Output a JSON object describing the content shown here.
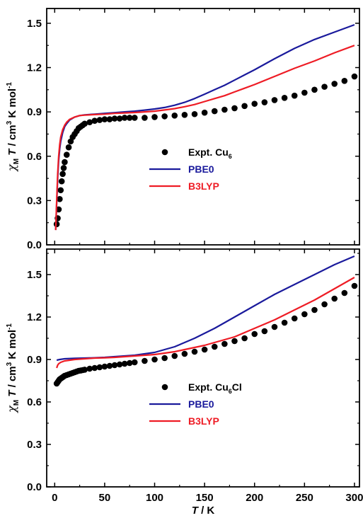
{
  "chart_data": [
    {
      "type": "line",
      "ylabel_parts": {
        "chi": "χ",
        "M": "M",
        "T": "T",
        "rest": " / cm",
        "cube": "3",
        "tail": " K mol",
        "inv": "-1"
      },
      "ylim": [
        0,
        1.6
      ],
      "xlim": [
        -8,
        305
      ],
      "yticks": [
        "0.0",
        "0.3",
        "0.6",
        "0.9",
        "1.2",
        "1.5"
      ],
      "ytick_values": [
        0,
        0.3,
        0.6,
        0.9,
        1.2,
        1.5
      ],
      "legend": [
        {
          "label": "Expt. Cu",
          "sub": "6",
          "marker": "dot",
          "color": "#000000"
        },
        {
          "label": "PBE0",
          "sub": "",
          "marker": "line",
          "color": "#1a1a9c"
        },
        {
          "label": "B3LYP",
          "sub": "",
          "marker": "line",
          "color": "#ee1c25"
        }
      ],
      "series": [
        {
          "name": "Expt. Cu6",
          "style": "scatter",
          "color": "#000000",
          "x": [
            2,
            3,
            4,
            5,
            6,
            7,
            8,
            9,
            10,
            12,
            14,
            16,
            18,
            20,
            22,
            24,
            26,
            28,
            30,
            35,
            40,
            45,
            50,
            55,
            60,
            65,
            70,
            75,
            80,
            90,
            100,
            110,
            120,
            130,
            140,
            150,
            160,
            170,
            180,
            190,
            200,
            210,
            220,
            230,
            240,
            250,
            260,
            270,
            280,
            290,
            300
          ],
          "y": [
            0.14,
            0.18,
            0.24,
            0.31,
            0.37,
            0.43,
            0.48,
            0.52,
            0.56,
            0.61,
            0.66,
            0.7,
            0.73,
            0.75,
            0.77,
            0.79,
            0.8,
            0.81,
            0.82,
            0.83,
            0.84,
            0.845,
            0.85,
            0.85,
            0.855,
            0.855,
            0.86,
            0.86,
            0.86,
            0.86,
            0.865,
            0.87,
            0.875,
            0.88,
            0.885,
            0.895,
            0.905,
            0.915,
            0.925,
            0.94,
            0.955,
            0.965,
            0.98,
            0.995,
            1.01,
            1.03,
            1.05,
            1.07,
            1.09,
            1.11,
            1.14
          ]
        },
        {
          "name": "PBE0",
          "style": "line",
          "color": "#1a1a9c",
          "x": [
            1,
            2,
            3,
            4,
            5,
            6,
            8,
            10,
            12,
            15,
            20,
            25,
            30,
            40,
            50,
            60,
            70,
            80,
            90,
            100,
            110,
            120,
            130,
            140,
            150,
            160,
            170,
            180,
            190,
            200,
            220,
            240,
            260,
            280,
            300
          ],
          "y": [
            0.1,
            0.28,
            0.45,
            0.57,
            0.65,
            0.7,
            0.76,
            0.8,
            0.82,
            0.845,
            0.865,
            0.875,
            0.88,
            0.885,
            0.89,
            0.895,
            0.9,
            0.905,
            0.912,
            0.92,
            0.93,
            0.945,
            0.965,
            0.99,
            1.02,
            1.05,
            1.08,
            1.115,
            1.15,
            1.185,
            1.26,
            1.33,
            1.39,
            1.44,
            1.49
          ]
        },
        {
          "name": "B3LYP",
          "style": "line",
          "color": "#ee1c25",
          "x": [
            1,
            2,
            3,
            4,
            5,
            6,
            8,
            10,
            12,
            15,
            20,
            25,
            30,
            40,
            50,
            60,
            70,
            80,
            90,
            100,
            110,
            120,
            130,
            140,
            150,
            160,
            170,
            180,
            190,
            200,
            220,
            240,
            260,
            280,
            300
          ],
          "y": [
            0.1,
            0.3,
            0.48,
            0.6,
            0.68,
            0.73,
            0.78,
            0.81,
            0.83,
            0.85,
            0.865,
            0.875,
            0.878,
            0.882,
            0.885,
            0.89,
            0.893,
            0.896,
            0.9,
            0.905,
            0.913,
            0.922,
            0.935,
            0.95,
            0.97,
            0.99,
            1.01,
            1.035,
            1.06,
            1.085,
            1.14,
            1.195,
            1.245,
            1.3,
            1.35
          ]
        }
      ]
    },
    {
      "type": "line",
      "ylabel_parts": {
        "chi": "χ",
        "M": "M",
        "T": "T",
        "rest": " / cm",
        "cube": "3",
        "tail": " K mol",
        "inv": "-1"
      },
      "xlabel_parts": {
        "T": "T",
        "rest": " / K"
      },
      "ylim": [
        0,
        1.68
      ],
      "xlim": [
        -8,
        305
      ],
      "yticks": [
        "0.0",
        "0.3",
        "0.6",
        "0.9",
        "1.2",
        "1.5"
      ],
      "ytick_values": [
        0,
        0.3,
        0.6,
        0.9,
        1.2,
        1.5
      ],
      "xticks": [
        "0",
        "50",
        "100",
        "150",
        "200",
        "250",
        "300"
      ],
      "xtick_values": [
        0,
        50,
        100,
        150,
        200,
        250,
        300
      ],
      "legend": [
        {
          "label": "Expt. Cu",
          "sub": "6",
          "suffix": "Cl",
          "marker": "dot",
          "color": "#000000"
        },
        {
          "label": "PBE0",
          "sub": "",
          "suffix": "",
          "marker": "line",
          "color": "#1a1a9c"
        },
        {
          "label": "B3LYP",
          "sub": "",
          "suffix": "",
          "marker": "line",
          "color": "#ee1c25"
        }
      ],
      "series": [
        {
          "name": "Expt. Cu6Cl",
          "style": "scatter",
          "color": "#000000",
          "x": [
            2,
            3,
            4,
            5,
            6,
            7,
            8,
            9,
            10,
            12,
            14,
            16,
            18,
            20,
            22,
            24,
            26,
            28,
            30,
            35,
            40,
            45,
            50,
            55,
            60,
            65,
            70,
            75,
            80,
            90,
            100,
            110,
            120,
            130,
            140,
            150,
            160,
            170,
            180,
            190,
            200,
            210,
            220,
            230,
            240,
            250,
            260,
            270,
            280,
            290,
            300
          ],
          "y": [
            0.73,
            0.74,
            0.75,
            0.76,
            0.765,
            0.77,
            0.775,
            0.78,
            0.785,
            0.79,
            0.795,
            0.8,
            0.805,
            0.81,
            0.815,
            0.82,
            0.822,
            0.825,
            0.828,
            0.835,
            0.84,
            0.845,
            0.85,
            0.855,
            0.86,
            0.865,
            0.87,
            0.875,
            0.88,
            0.89,
            0.9,
            0.91,
            0.925,
            0.94,
            0.955,
            0.97,
            0.99,
            1.01,
            1.03,
            1.05,
            1.08,
            1.1,
            1.13,
            1.16,
            1.19,
            1.22,
            1.25,
            1.29,
            1.33,
            1.37,
            1.42
          ]
        },
        {
          "name": "PBE0",
          "style": "line",
          "color": "#1a1a9c",
          "x": [
            2,
            5,
            10,
            20,
            30,
            40,
            50,
            60,
            70,
            80,
            90,
            100,
            110,
            120,
            130,
            140,
            150,
            160,
            170,
            180,
            190,
            200,
            220,
            240,
            260,
            280,
            300
          ],
          "y": [
            0.895,
            0.9,
            0.905,
            0.908,
            0.91,
            0.912,
            0.915,
            0.92,
            0.925,
            0.93,
            0.94,
            0.95,
            0.97,
            0.99,
            1.02,
            1.05,
            1.085,
            1.12,
            1.16,
            1.2,
            1.24,
            1.28,
            1.36,
            1.43,
            1.5,
            1.57,
            1.63
          ]
        },
        {
          "name": "B3LYP",
          "style": "line",
          "color": "#ee1c25",
          "x": [
            2,
            3,
            4,
            6,
            8,
            10,
            15,
            20,
            30,
            40,
            50,
            60,
            70,
            80,
            90,
            100,
            110,
            120,
            130,
            140,
            150,
            160,
            170,
            180,
            190,
            200,
            220,
            240,
            260,
            280,
            300
          ],
          "y": [
            0.84,
            0.86,
            0.87,
            0.88,
            0.885,
            0.89,
            0.895,
            0.9,
            0.905,
            0.91,
            0.912,
            0.915,
            0.92,
            0.925,
            0.93,
            0.935,
            0.945,
            0.955,
            0.97,
            0.985,
            1.0,
            1.02,
            1.04,
            1.06,
            1.09,
            1.12,
            1.18,
            1.25,
            1.32,
            1.4,
            1.48
          ]
        }
      ]
    }
  ]
}
